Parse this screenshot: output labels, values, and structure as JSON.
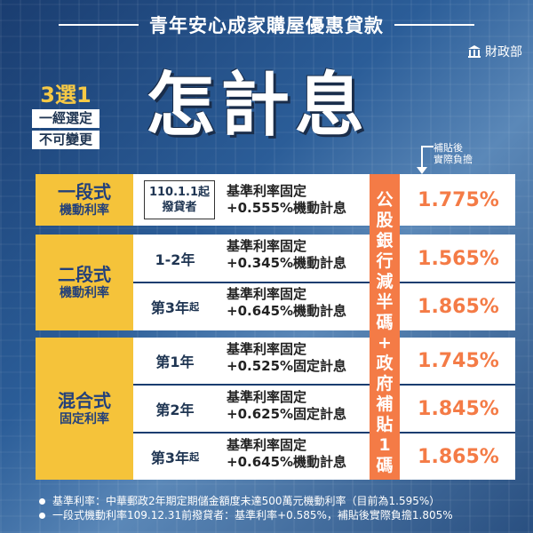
{
  "header": {
    "title": "青年安心成家購屋優惠貸款"
  },
  "ministry": {
    "name": "財政部"
  },
  "choose": {
    "big": "3選1",
    "line1": "一經選定",
    "line2": "不可變更"
  },
  "main_title": "怎計息",
  "subsidy_note": "補貼後\n實際負擔",
  "side_banner": "公股銀行減半碼+政府補貼1碼",
  "options": [
    {
      "name": "一段式",
      "type": "機動利率",
      "rows": [
        {
          "period_line1": "110.1.1起",
          "period_line2": "撥貸者",
          "rate_line1": "基準利率固定",
          "rate_line2": "+0.555%機動計息",
          "final": "1.775%"
        }
      ]
    },
    {
      "name": "二段式",
      "type": "機動利率",
      "rows": [
        {
          "period": "1-2年",
          "rate_line1": "基準利率固定",
          "rate_line2": "+0.345%機動計息",
          "final": "1.565%"
        },
        {
          "period": "第3年",
          "suffix": "起",
          "rate_line1": "基準利率固定",
          "rate_line2": "+0.645%機動計息",
          "final": "1.865%"
        }
      ]
    },
    {
      "name": "混合式",
      "type": "固定利率",
      "rows": [
        {
          "period": "第1年",
          "rate_line1": "基準利率固定",
          "rate_line2": "+0.525%固定計息",
          "final": "1.745%"
        },
        {
          "period": "第2年",
          "rate_line1": "基準利率固定",
          "rate_line2": "+0.625%固定計息",
          "final": "1.845%"
        },
        {
          "period": "第3年",
          "suffix": "起",
          "rate_line1": "基準利率固定",
          "rate_line2": "+0.645%機動計息",
          "final": "1.865%"
        }
      ]
    }
  ],
  "notes": [
    "基準利率：中華郵政2年期定期儲金額度未達500萬元機動利率（目前為1.595%）",
    "一段式機動利率109.12.31前撥貸者：基準利率+0.585%，補貼後實際負擔1.805%"
  ]
}
